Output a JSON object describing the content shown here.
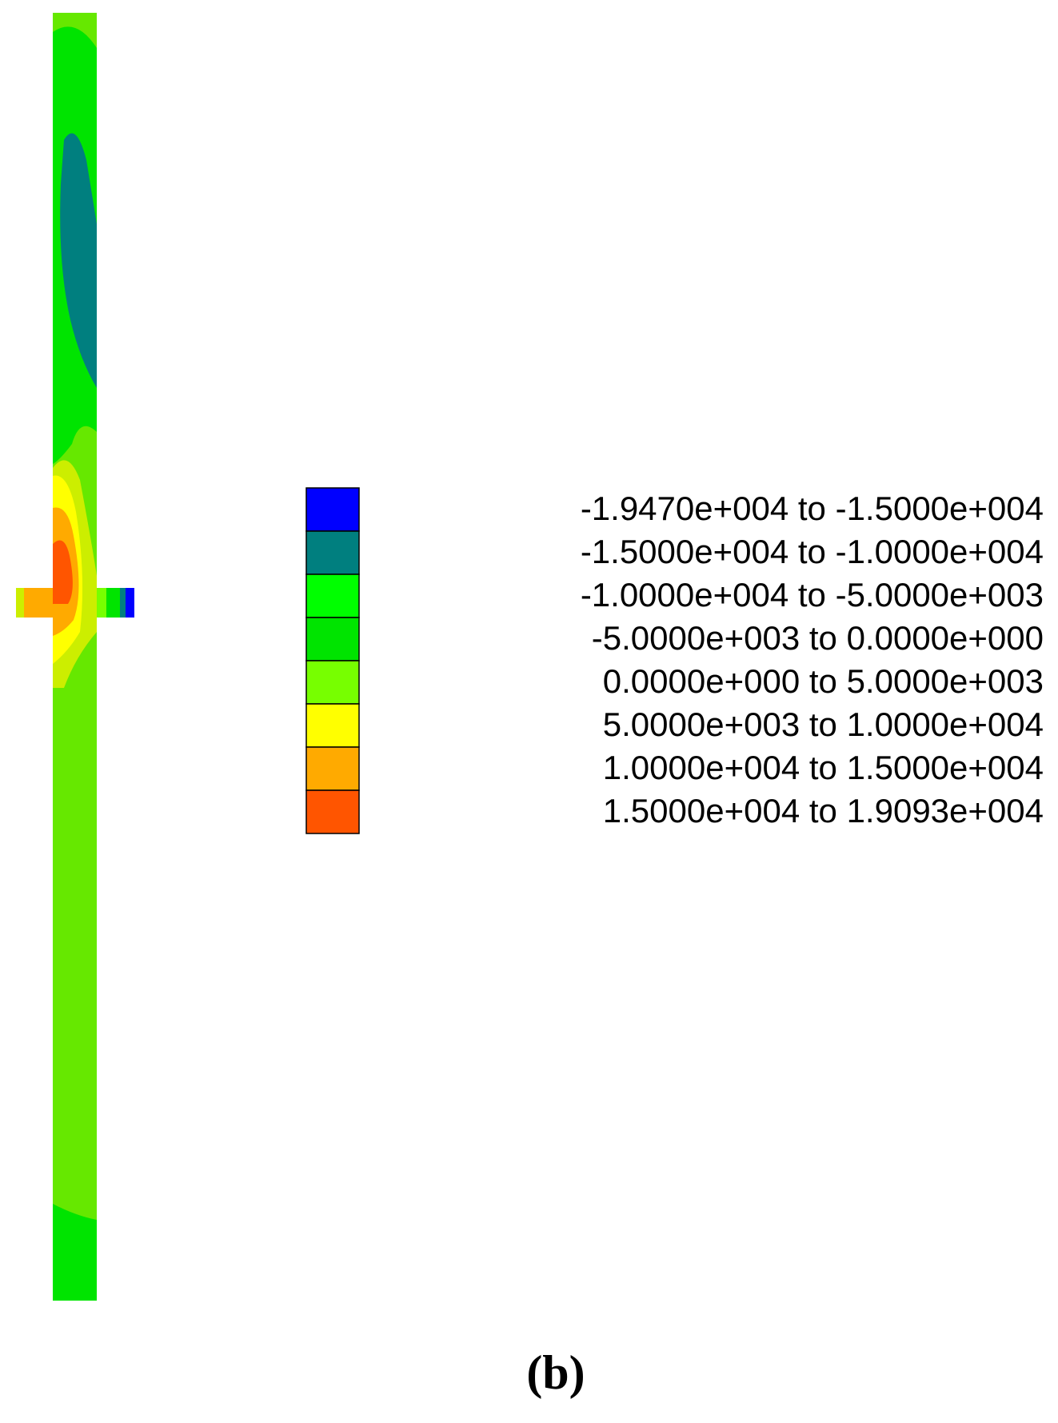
{
  "legend": {
    "items": [
      {
        "label": "-1.9470e+004 to -1.5000e+004",
        "color": "#0000ff"
      },
      {
        "label": "-1.5000e+004 to -1.0000e+004",
        "color": "#007f7f"
      },
      {
        "label": "-1.0000e+004 to -5.0000e+003",
        "color": "#00ff00"
      },
      {
        "label": "-5.0000e+003 to 0.0000e+000",
        "color": "#00e400"
      },
      {
        "label": "0.0000e+000 to 5.0000e+003",
        "color": "#77ff00"
      },
      {
        "label": "5.0000e+003 to 1.0000e+004",
        "color": "#ffff00"
      },
      {
        "label": "1.0000e+004 to 1.5000e+004",
        "color": "#ffaa00"
      },
      {
        "label": "1.5000e+004 to 1.9093e+004",
        "color": "#ff5500"
      }
    ]
  },
  "caption": "(b)"
}
